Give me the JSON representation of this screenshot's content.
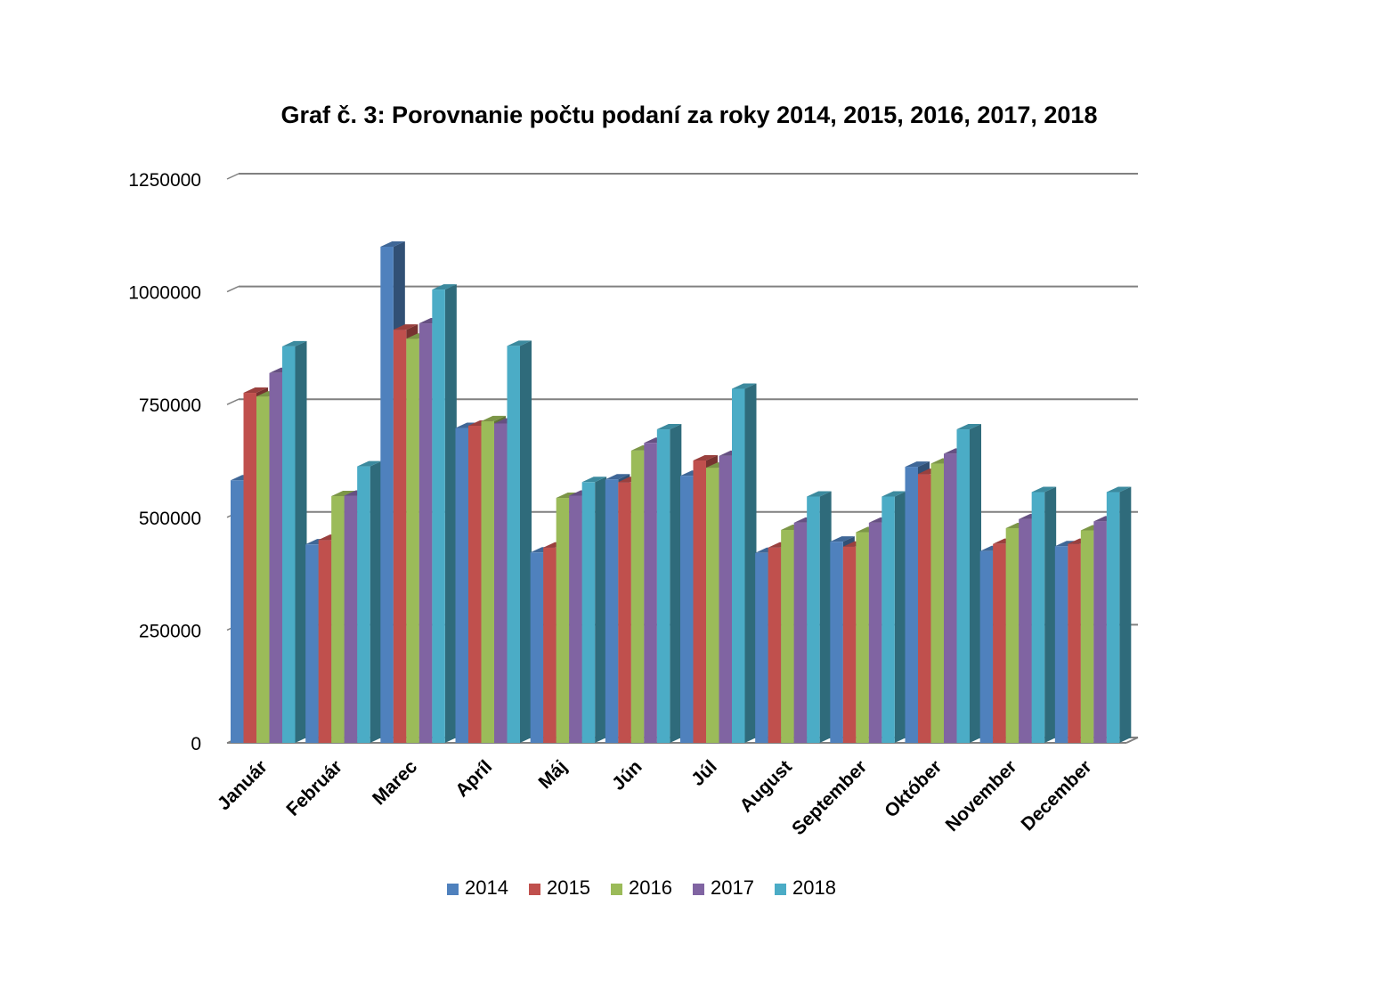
{
  "chart_data": {
    "type": "bar",
    "title": "Graf č. 3: Porovnanie počtu podaní za roky 2014, 2015, 2016, 2017, 2018",
    "xlabel": "",
    "ylabel": "",
    "ylim": [
      0,
      1250000
    ],
    "yticks": [
      "0",
      "250000",
      "500000",
      "750000",
      "1000000",
      "1250000"
    ],
    "grid": true,
    "legend_position": "bottom",
    "categories": [
      "Január",
      "Február",
      "Marec",
      "Apríl",
      "Máj",
      "Jún",
      "Júl",
      "August",
      "September",
      "Október",
      "November",
      "December"
    ],
    "series": [
      {
        "name": "2014",
        "color": "#4F81BD",
        "values": [
          582000,
          440000,
          1100000,
          698000,
          422000,
          584000,
          592000,
          421000,
          446000,
          612000,
          425000,
          436000
        ]
      },
      {
        "name": "2015",
        "color": "#C0504D",
        "values": [
          776000,
          450000,
          916000,
          703000,
          433000,
          578000,
          626000,
          433000,
          435000,
          596000,
          441000,
          441000
        ]
      },
      {
        "name": "2016",
        "color": "#9BBB59",
        "values": [
          768000,
          547000,
          896000,
          713000,
          543000,
          648000,
          610000,
          472000,
          467000,
          619000,
          476000,
          471000
        ]
      },
      {
        "name": "2017",
        "color": "#8064A2",
        "values": [
          820000,
          548000,
          930000,
          708000,
          548000,
          665000,
          636000,
          488000,
          488000,
          641000,
          496000,
          491000
        ]
      },
      {
        "name": "2018",
        "color": "#4BACC6",
        "values": [
          879000,
          613000,
          1005000,
          880000,
          578000,
          695000,
          785000,
          546000,
          546000,
          695000,
          556000,
          556000
        ]
      }
    ]
  }
}
